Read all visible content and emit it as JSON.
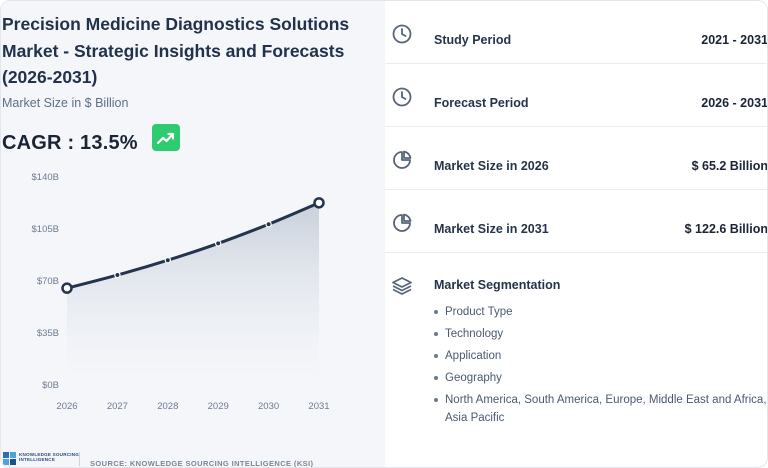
{
  "title": "Precision Medicine Diagnostics Solutions Market - Strategic Insights and Forecasts (2026-2031)",
  "subtitle": "Market Size in $ Billion",
  "cagr_label": "CAGR : 13.5%",
  "source": "SOURCE: KNOWLEDGE SOURCING INTELLIGENCE (KSI)",
  "logo_text": [
    "KNOWLEDGE SOURCING",
    "INTELLIGENCE"
  ],
  "colors": {
    "accent_green": "#2ecc71",
    "line": "#24344d",
    "area_top": "#c9d0db",
    "area_bottom": "#f4f6fa"
  },
  "chart_data": {
    "type": "area",
    "x": [
      "2026",
      "2027",
      "2028",
      "2029",
      "2030",
      "2031"
    ],
    "values": [
      65.2,
      74.0,
      84.0,
      95.3,
      108.2,
      122.6
    ],
    "y_tick_labels": [
      "$0B",
      "$35B",
      "$70B",
      "$105B",
      "$140B"
    ],
    "y_ticks": [
      0,
      35,
      70,
      105,
      140
    ],
    "ylim": [
      0,
      140
    ],
    "grid": false,
    "markers": true
  },
  "stats": [
    {
      "icon": "clock-icon",
      "label": "Study Period",
      "value": "2021 - 2031"
    },
    {
      "icon": "clock-icon",
      "label": "Forecast Period",
      "value": "2026 - 2031"
    },
    {
      "icon": "pie-chart-icon",
      "label": "Market Size in 2026",
      "value": "$ 65.2 Billion"
    },
    {
      "icon": "pie-chart-icon",
      "label": "Market Size in 2031",
      "value": "$ 122.6 Billion"
    }
  ],
  "segmentation": {
    "icon": "layers-icon",
    "label": "Market Segmentation",
    "items": [
      "Product Type",
      "Technology",
      "Application",
      "Geography",
      "North America, South America, Europe, Middle East and Africa, Asia Pacific"
    ]
  }
}
